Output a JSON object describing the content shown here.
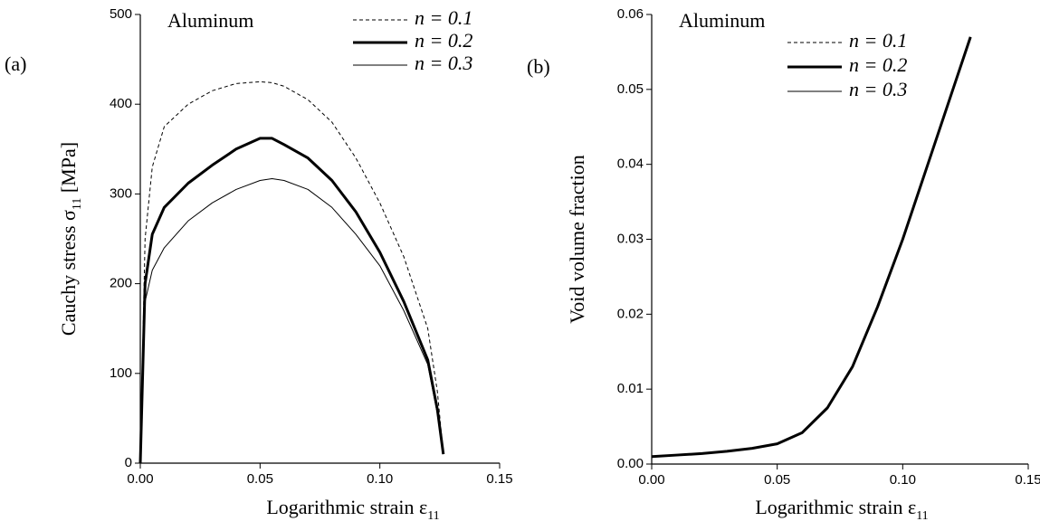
{
  "chart_data": [
    {
      "type": "line",
      "panel_label": "(a)",
      "annotation": "Aluminum",
      "x_label": {
        "text": "Logarithmic strain ε",
        "subscript": "11"
      },
      "y_label": {
        "text": "Cauchy stress σ",
        "subscript": "11",
        "suffix": " [MPa]"
      },
      "x": [
        0,
        0.002,
        0.005,
        0.01,
        0.02,
        0.03,
        0.04,
        0.05,
        0.055,
        0.06,
        0.07,
        0.08,
        0.09,
        0.1,
        0.11,
        0.12,
        0.124,
        0.1265
      ],
      "series": [
        {
          "name": "n = 0.1",
          "color": "#000000",
          "style": "dashed",
          "width": 1,
          "values": [
            0,
            250,
            330,
            375,
            400,
            415,
            423,
            425,
            424,
            420,
            405,
            380,
            340,
            290,
            230,
            150,
            80,
            10
          ]
        },
        {
          "name": "n = 0.2",
          "color": "#000000",
          "style": "solid",
          "width": 3,
          "values": [
            0,
            200,
            255,
            285,
            312,
            332,
            350,
            362,
            362,
            355,
            340,
            315,
            280,
            235,
            180,
            115,
            60,
            10
          ]
        },
        {
          "name": "n = 0.3",
          "color": "#000000",
          "style": "solid",
          "width": 1,
          "values": [
            0,
            180,
            215,
            240,
            270,
            290,
            305,
            315,
            317,
            315,
            305,
            285,
            255,
            220,
            170,
            110,
            55,
            10
          ]
        }
      ],
      "xlim": [
        0,
        0.15
      ],
      "xticks": [
        {
          "value": 0,
          "label": "0.00"
        },
        0.05,
        {
          "value": 0.1,
          "label": "0.10"
        },
        0.15
      ],
      "ylim": [
        0,
        500
      ],
      "yticks": [
        0,
        100,
        200,
        300,
        400,
        500
      ],
      "legend": "upper right"
    },
    {
      "type": "line",
      "panel_label": "(b)",
      "annotation": "Aluminum",
      "x_label": {
        "text": "Logarithmic strain ε",
        "subscript": "11"
      },
      "y_label": {
        "text": "Void volume fraction"
      },
      "x": [
        0,
        0.01,
        0.02,
        0.03,
        0.04,
        0.05,
        0.06,
        0.07,
        0.08,
        0.09,
        0.1,
        0.11,
        0.12,
        0.127
      ],
      "series": [
        {
          "name": "n = 0.1",
          "color": "#000000",
          "style": "dashed",
          "width": 1,
          "values": [
            0.001,
            0.0012,
            0.0014,
            0.0017,
            0.0021,
            0.0027,
            0.0042,
            0.0075,
            0.013,
            0.021,
            0.03,
            0.04,
            0.05,
            0.057
          ]
        },
        {
          "name": "n = 0.2",
          "color": "#000000",
          "style": "solid",
          "width": 3,
          "values": [
            0.001,
            0.0012,
            0.0014,
            0.0017,
            0.0021,
            0.0027,
            0.0042,
            0.0075,
            0.013,
            0.021,
            0.03,
            0.04,
            0.05,
            0.057
          ]
        },
        {
          "name": "n = 0.3",
          "color": "#000000",
          "style": "solid",
          "width": 1,
          "values": [
            0.001,
            0.0012,
            0.0014,
            0.0017,
            0.0021,
            0.0027,
            0.0042,
            0.0075,
            0.013,
            0.021,
            0.03,
            0.04,
            0.05,
            0.057
          ]
        }
      ],
      "xlim": [
        0,
        0.15
      ],
      "xticks": [
        {
          "value": 0,
          "label": "0.00"
        },
        0.05,
        {
          "value": 0.1,
          "label": "0.10"
        },
        0.15
      ],
      "ylim": [
        0,
        0.06
      ],
      "yticks": [
        {
          "value": 0,
          "label": "0.00"
        },
        0.01,
        0.02,
        0.03,
        0.04,
        0.05,
        0.06
      ],
      "legend": "upper right"
    }
  ]
}
